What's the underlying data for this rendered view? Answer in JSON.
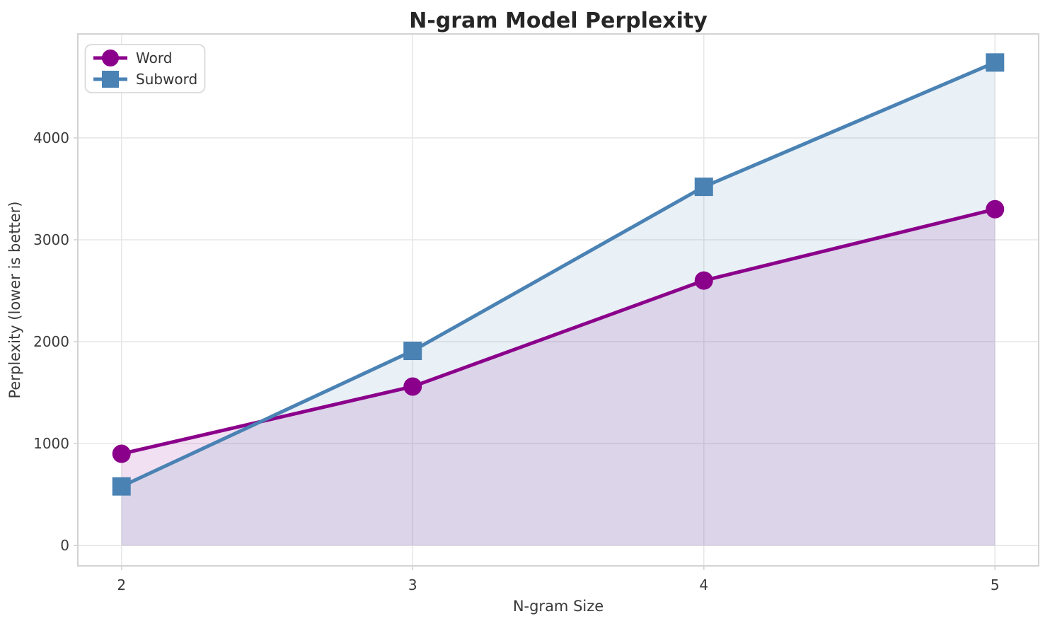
{
  "figure": {
    "background": "#ffffff",
    "grid_color": "#e7e7e7",
    "spine_color": "#d3d3d3",
    "text_color": "#3a3a3a",
    "title_color": "#262626"
  },
  "chart_data": {
    "type": "line",
    "title": "N-gram Model Perplexity",
    "xlabel": "N-gram Size",
    "ylabel": "Perplexity (lower is better)",
    "x": [
      2,
      3,
      4,
      5
    ],
    "xtick_labels": [
      "2",
      "3",
      "4",
      "5"
    ],
    "ytick_values": [
      0,
      1000,
      2000,
      3000,
      4000
    ],
    "ytick_labels": [
      "0",
      "1000",
      "2000",
      "3000",
      "4000"
    ],
    "xlim": [
      1.85,
      5.15
    ],
    "ylim": [
      -200,
      5020
    ],
    "grid": true,
    "legend_position": "upper-left",
    "series": [
      {
        "name": "Word",
        "color": "#8b008b",
        "marker": "circle",
        "values": [
          900,
          1560,
          2600,
          3300
        ],
        "fill_to_zero": true,
        "fill_opacity": 0.12
      },
      {
        "name": "Subword",
        "color": "#4a82b4",
        "marker": "square",
        "values": [
          580,
          1910,
          3520,
          4740
        ],
        "fill_to_zero": true,
        "fill_opacity": 0.12
      }
    ]
  }
}
